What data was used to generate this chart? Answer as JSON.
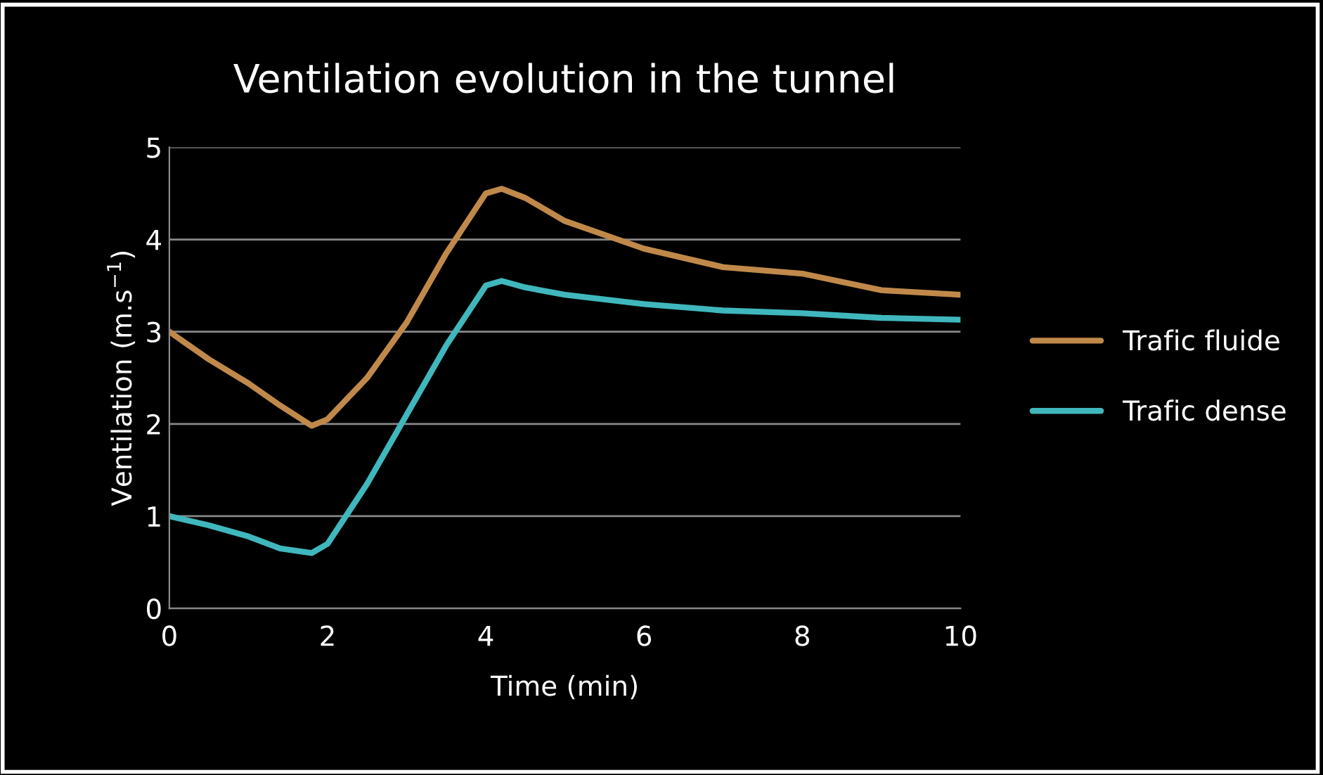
{
  "chart_data": {
    "type": "line",
    "title": "Ventilation evolution in the tunnel",
    "xlabel": "Time (min)",
    "ylabel": "Ventilation (m.s$^{−1}$)",
    "xlim": [
      0,
      10
    ],
    "xticks": [
      0,
      2,
      4,
      6,
      8,
      10
    ],
    "ylim": [
      0,
      5
    ],
    "yticks": [
      0,
      1,
      2,
      3,
      4,
      5
    ],
    "grid": "y",
    "legend": "right",
    "marker": "none",
    "line_style": "solid",
    "series": [
      {
        "name": "Trafic fluide",
        "color": "#c0894a",
        "x": [
          0,
          0.5,
          1,
          1.4,
          1.8,
          2,
          2.5,
          3,
          3.5,
          4,
          4.2,
          4.5,
          5,
          6,
          7,
          8,
          9,
          10
        ],
        "values": [
          3.0,
          2.7,
          2.44,
          2.2,
          1.98,
          2.05,
          2.5,
          3.1,
          3.85,
          4.5,
          4.55,
          4.45,
          4.2,
          3.9,
          3.7,
          3.63,
          3.45,
          3.4
        ]
      },
      {
        "name": "Trafic dense",
        "color": "#3fb7bd",
        "x": [
          0,
          0.5,
          1,
          1.4,
          1.8,
          2,
          2.5,
          3,
          3.5,
          4,
          4.2,
          4.5,
          5,
          6,
          7,
          8,
          9,
          10
        ],
        "values": [
          1.0,
          0.9,
          0.78,
          0.65,
          0.6,
          0.7,
          1.35,
          2.1,
          2.85,
          3.5,
          3.55,
          3.48,
          3.4,
          3.3,
          3.23,
          3.2,
          3.15,
          3.13
        ]
      }
    ]
  }
}
